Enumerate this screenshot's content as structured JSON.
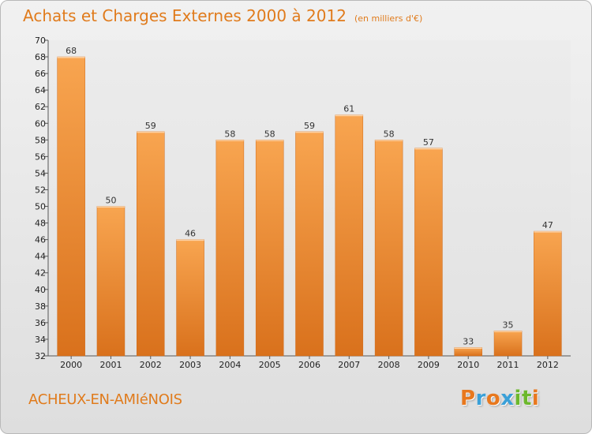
{
  "header": {
    "title": "Achats et Charges Externes 2000 à 2012",
    "subtitle": "(en milliers d'€)"
  },
  "footer": {
    "place": "ACHEUX-EN-AMIéNOIS",
    "brand": "Proxiti",
    "brand_colors": [
      "#e8781e",
      "#3aa0d8",
      "#e8781e",
      "#3aa0d8",
      "#6cb82c",
      "#6cb82c",
      "#e8781e"
    ]
  },
  "colors": {
    "bar_light": "#f8a550",
    "bar_dark": "#d9711c",
    "accent": "#e07b1c"
  },
  "chart_data": {
    "type": "bar",
    "title": "Achats et Charges Externes 2000 à 2012",
    "subtitle": "(en milliers d'€)",
    "categories": [
      "2000",
      "2001",
      "2002",
      "2003",
      "2004",
      "2005",
      "2006",
      "2007",
      "2008",
      "2009",
      "2010",
      "2011",
      "2012"
    ],
    "values": [
      68,
      50,
      59,
      46,
      58,
      58,
      59,
      61,
      58,
      57,
      33,
      35,
      47
    ],
    "ylim": [
      32,
      70
    ],
    "ytick_step": 2,
    "grid": false,
    "legend": "none"
  }
}
